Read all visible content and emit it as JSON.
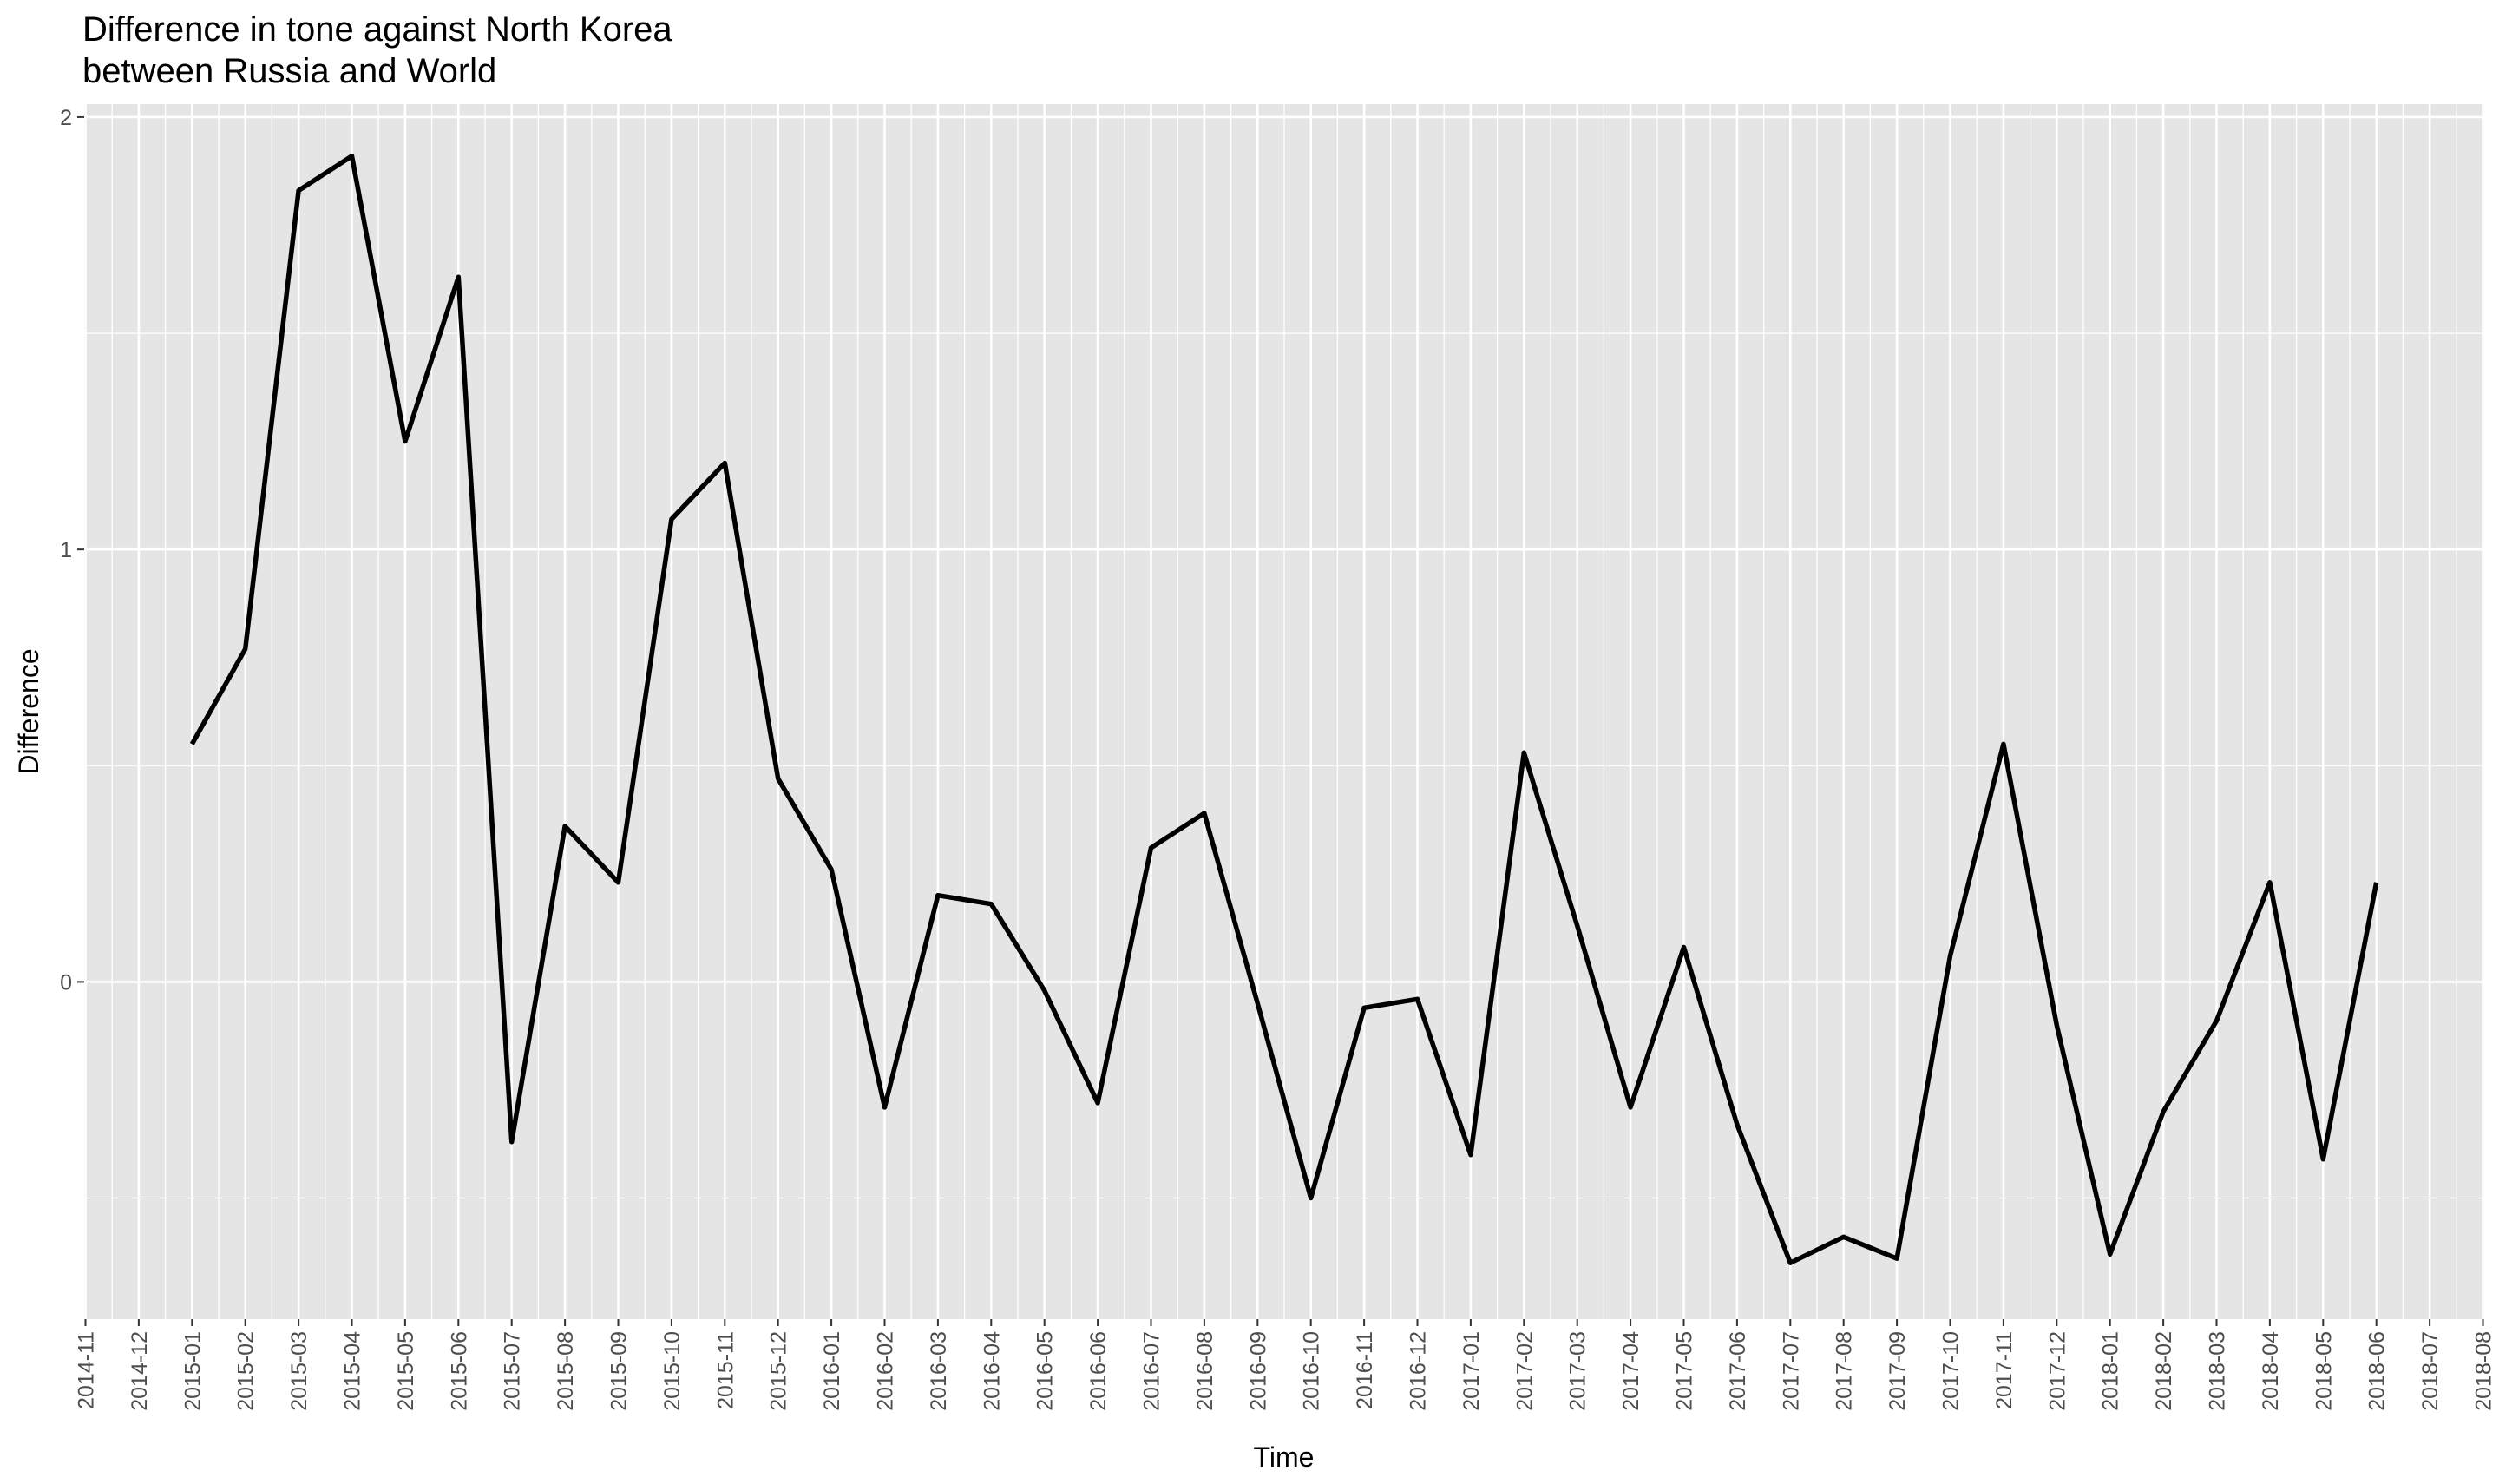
{
  "chart_data": {
    "type": "line",
    "title": "Difference in tone against North Korea",
    "subtitle": "between Russia and World",
    "xlabel": "Time",
    "ylabel": "Difference",
    "ylim": [
      -0.78,
      2.03
    ],
    "y_ticks": [
      0,
      1,
      2
    ],
    "y_tick_labels": [
      "0",
      "1",
      "2"
    ],
    "grid": true,
    "panel_background": "#e5e5e5",
    "grid_color": "#ffffff",
    "line_color": "#000000",
    "x_tick_labels": [
      "2014-11",
      "2014-12",
      "2015-01",
      "2015-02",
      "2015-03",
      "2015-04",
      "2015-05",
      "2015-06",
      "2015-07",
      "2015-08",
      "2015-09",
      "2015-10",
      "2015-11",
      "2015-12",
      "2016-01",
      "2016-02",
      "2016-03",
      "2016-04",
      "2016-05",
      "2016-06",
      "2016-07",
      "2016-08",
      "2016-09",
      "2016-10",
      "2016-11",
      "2016-12",
      "2017-01",
      "2017-02",
      "2017-03",
      "2017-04",
      "2017-05",
      "2017-06",
      "2017-07",
      "2017-08",
      "2017-09",
      "2017-10",
      "2017-11",
      "2017-12",
      "2018-01",
      "2018-02",
      "2018-03",
      "2018-04",
      "2018-05",
      "2018-06",
      "2018-07",
      "2018-08"
    ],
    "series": [
      {
        "x": [
          "2015-01",
          "2015-02",
          "2015-03",
          "2015-04",
          "2015-05",
          "2015-06",
          "2015-07",
          "2015-08",
          "2015-09",
          "2015-10",
          "2015-11",
          "2015-12",
          "2016-01",
          "2016-02",
          "2016-03",
          "2016-04",
          "2016-05",
          "2016-06",
          "2016-07",
          "2016-08",
          "2016-09",
          "2016-10",
          "2016-11",
          "2016-12",
          "2017-01",
          "2017-02",
          "2017-03",
          "2017-04",
          "2017-05",
          "2017-06",
          "2017-07",
          "2017-08",
          "2017-09",
          "2017-10",
          "2017-11",
          "2017-12",
          "2018-01",
          "2018-02",
          "2018-03",
          "2018-04",
          "2018-05",
          "2018-06"
        ],
        "values": [
          0.55,
          0.77,
          1.83,
          1.91,
          1.25,
          1.63,
          -0.37,
          0.36,
          0.23,
          1.07,
          1.2,
          0.47,
          0.26,
          -0.29,
          0.2,
          0.18,
          -0.02,
          -0.28,
          0.31,
          0.39,
          -0.05,
          -0.5,
          -0.06,
          -0.04,
          -0.4,
          0.53,
          0.13,
          -0.29,
          0.08,
          -0.33,
          -0.65,
          -0.59,
          -0.64,
          0.06,
          0.55,
          -0.1,
          -0.63,
          -0.3,
          -0.09,
          0.23,
          -0.41,
          0.23
        ]
      }
    ]
  }
}
